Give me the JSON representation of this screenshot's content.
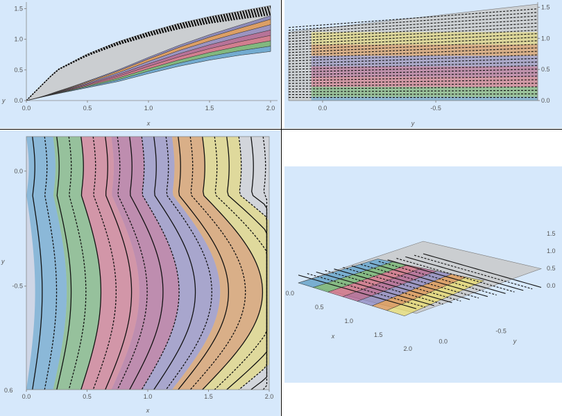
{
  "chart_data": [
    {
      "type": "area",
      "panel": "top-left",
      "xlabel": "x",
      "ylabel": "y",
      "x_ticks": [
        "0.0",
        "0.5",
        "1.0",
        "1.5",
        "2.0"
      ],
      "y_ticks": [
        "0.0",
        "0.5",
        "1.0",
        "1.5"
      ],
      "xlim": [
        0,
        2
      ],
      "ylim": [
        0,
        1.55
      ],
      "upper_boundary": {
        "x": [
          0,
          0.25,
          0.5,
          0.75,
          1.0,
          1.25,
          1.5,
          1.75,
          2.0
        ],
        "y": [
          0,
          0.5,
          0.76,
          0.96,
          1.12,
          1.26,
          1.37,
          1.46,
          1.55
        ]
      },
      "lower_boundary": {
        "x": [
          0,
          0.25,
          0.5,
          0.75,
          1.0,
          1.25,
          1.5,
          1.75,
          2.0
        ],
        "y": [
          0,
          0.11,
          0.21,
          0.31,
          0.44,
          0.56,
          0.66,
          0.74,
          0.8
        ]
      },
      "band_levels": [
        0,
        0.15,
        0.3,
        0.45,
        0.6,
        0.75,
        0.9,
        1.0
      ],
      "band_colors": [
        "#5da3cf",
        "#6fb36a",
        "#d36a7e",
        "#b25c8a",
        "#8e86bd",
        "#e0944a",
        "#7d7bb3",
        "#eadb6b"
      ]
    },
    {
      "type": "area",
      "panel": "top-right",
      "xlabel": "y",
      "x_ticks": [
        "0.0",
        "-0.5"
      ],
      "y_ticks": [
        "0.0",
        "0.5",
        "1.0",
        "1.5"
      ],
      "xlim": [
        0.15,
        -0.95
      ],
      "ylim": [
        0,
        1.55
      ],
      "band_colors": [
        "#5da3cf",
        "#6fb36a",
        "#d36a7e",
        "#b25c8a",
        "#8e86bd",
        "#e0944a",
        "#eadb6b"
      ]
    },
    {
      "type": "heatmap",
      "panel": "bottom-left",
      "xlabel": "x",
      "ylabel": "y",
      "x_ticks": [
        "0.0",
        "0.5",
        "1.0",
        "1.5",
        "2.0"
      ],
      "y_ticks": [
        "0.0",
        "-0.5"
      ],
      "corner_label": "0.6",
      "xlim": [
        0,
        2
      ],
      "ylim": [
        -0.95,
        0.15
      ],
      "contour_count": 20,
      "band_colors": [
        "#5da3cf",
        "#6fb36a",
        "#d36a7e",
        "#b25c8a",
        "#8e86bd",
        "#e0944a",
        "#eadb6b",
        "#d3d3d3"
      ]
    },
    {
      "type": "area",
      "panel": "bottom-right-3d",
      "xlabel": "x",
      "ylabel": "y",
      "x_ticks": [
        "0.0",
        "0.5",
        "1.0",
        "1.5",
        "2.0"
      ],
      "y_ticks": [
        "0.0",
        "-0.5"
      ],
      "z_ticks": [
        "0.0",
        "0.5",
        "1.0",
        "1.5"
      ],
      "band_colors": [
        "#5da3cf",
        "#6fb36a",
        "#d36a7e",
        "#b25c8a",
        "#8e86bd",
        "#e0944a",
        "#eadb6b"
      ]
    }
  ]
}
